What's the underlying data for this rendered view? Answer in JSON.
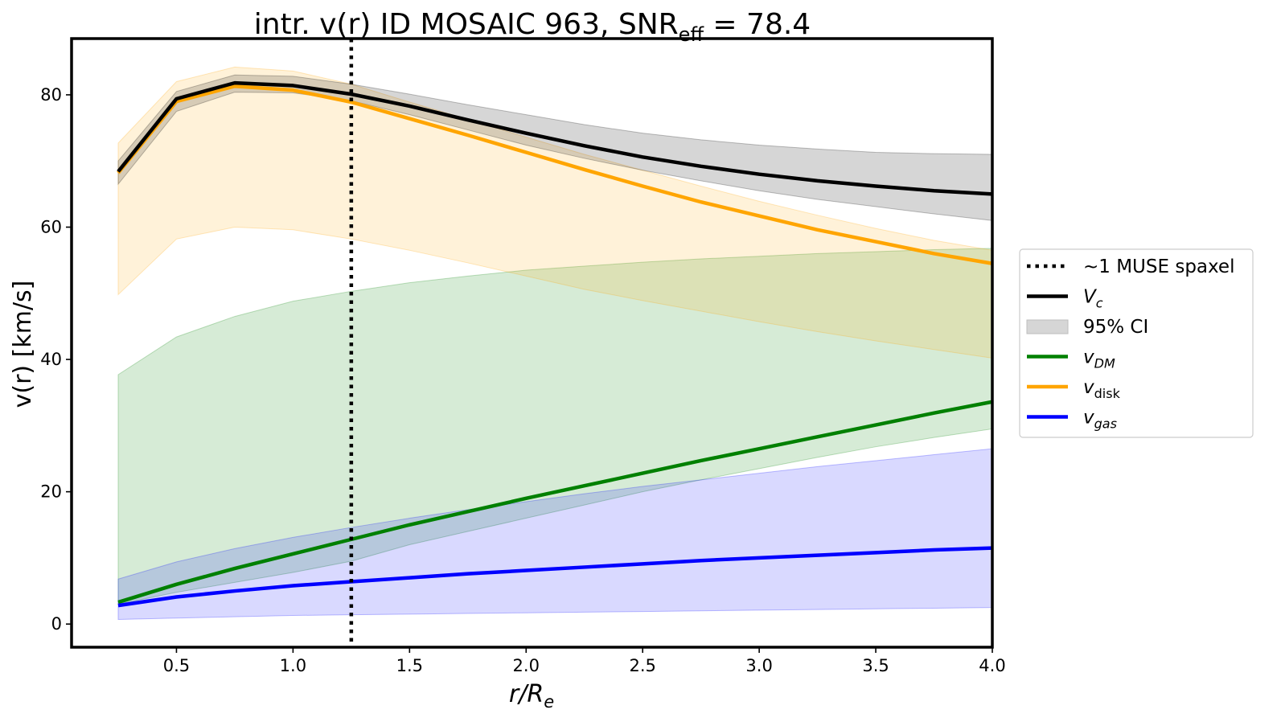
{
  "chart_data": {
    "type": "line",
    "title": "intr. v(r) ID MOSAIC 963, SNR",
    "title_subscript": "eff",
    "title_suffix": " = 78.4",
    "xlabel": {
      "base": "r/R",
      "sub": "e"
    },
    "ylabel": "v(r) [km/s]",
    "xlim": [
      0.05,
      4.0
    ],
    "ylim": [
      -3.5,
      88.5
    ],
    "xticks": [
      0.5,
      1.0,
      1.5,
      2.0,
      2.5,
      3.0,
      3.5,
      4.0
    ],
    "xtick_labels": [
      "0.5",
      "1.0",
      "1.5",
      "2.0",
      "2.5",
      "3.0",
      "3.5",
      "4.0"
    ],
    "yticks": [
      0,
      20,
      40,
      60,
      80
    ],
    "ytick_labels": [
      "0",
      "20",
      "40",
      "60",
      "80"
    ],
    "grid": false,
    "legend_position": "outside-right",
    "vline": {
      "x": 1.25,
      "label": "~1 MUSE spaxel",
      "color": "#000000"
    },
    "x": [
      0.25,
      0.5,
      0.75,
      1.0,
      1.25,
      1.5,
      1.75,
      2.0,
      2.25,
      2.5,
      2.75,
      3.0,
      3.25,
      3.5,
      3.75,
      4.0
    ],
    "series": [
      {
        "key": "dm",
        "name": "v",
        "sub": "DM",
        "sub_italic": true,
        "color": "#008000",
        "band_opacity": 0.16,
        "values": [
          3.3,
          6.0,
          8.4,
          10.6,
          12.8,
          15.0,
          17.0,
          19.0,
          20.9,
          22.8,
          24.7,
          26.5,
          28.3,
          30.1,
          31.9,
          33.6
        ],
        "lower": [
          3.0,
          4.8,
          6.3,
          7.8,
          9.5,
          12.0,
          14.0,
          16.0,
          18.0,
          20.0,
          21.8,
          23.5,
          25.2,
          26.8,
          28.2,
          29.5
        ],
        "upper": [
          37.7,
          43.4,
          46.5,
          48.8,
          50.3,
          51.6,
          52.6,
          53.5,
          54.1,
          54.7,
          55.2,
          55.6,
          56.0,
          56.3,
          56.6,
          56.8
        ]
      },
      {
        "key": "gas",
        "name": "v",
        "sub": "gas",
        "sub_italic": true,
        "color": "#0000ff",
        "band_opacity": 0.15,
        "values": [
          2.8,
          4.1,
          5.0,
          5.8,
          6.4,
          7.0,
          7.6,
          8.1,
          8.6,
          9.1,
          9.6,
          10.0,
          10.4,
          10.8,
          11.2,
          11.5
        ],
        "lower": [
          0.7,
          0.9,
          1.1,
          1.3,
          1.4,
          1.5,
          1.6,
          1.7,
          1.8,
          1.9,
          2.0,
          2.1,
          2.2,
          2.3,
          2.4,
          2.5
        ],
        "upper": [
          6.8,
          9.4,
          11.4,
          13.1,
          14.6,
          16.0,
          17.3,
          18.5,
          19.7,
          20.8,
          21.8,
          22.8,
          23.8,
          24.7,
          25.6,
          26.5
        ]
      },
      {
        "key": "disk",
        "name": "v",
        "sub": "disk",
        "sub_italic": false,
        "color": "#ffa500",
        "band_opacity": 0.15,
        "values": [
          68.2,
          79.0,
          81.3,
          80.7,
          78.9,
          76.4,
          73.9,
          71.3,
          68.7,
          66.2,
          63.8,
          61.7,
          59.6,
          57.8,
          56.0,
          54.5
        ],
        "lower": [
          49.8,
          58.2,
          60.0,
          59.6,
          58.2,
          56.5,
          54.6,
          52.6,
          50.6,
          48.9,
          47.3,
          45.7,
          44.2,
          42.8,
          41.5,
          40.2
        ],
        "upper": [
          72.7,
          82.0,
          84.2,
          83.6,
          81.6,
          78.9,
          76.3,
          73.6,
          71.0,
          68.6,
          66.2,
          63.9,
          61.8,
          59.8,
          58.0,
          56.5
        ]
      },
      {
        "key": "vc",
        "name": "V",
        "sub": "c",
        "sub_italic": true,
        "color": "#000000",
        "band_opacity": 0.16,
        "values": [
          68.4,
          79.4,
          81.8,
          81.4,
          80.1,
          78.3,
          76.2,
          74.2,
          72.3,
          70.6,
          69.2,
          68.0,
          67.0,
          66.2,
          65.5,
          65.0
        ],
        "lower": [
          66.5,
          77.5,
          80.4,
          80.3,
          79.1,
          77.0,
          74.7,
          72.4,
          70.4,
          68.6,
          67.0,
          65.5,
          64.2,
          63.1,
          62.0,
          61.0
        ],
        "upper": [
          70.0,
          80.5,
          83.0,
          82.8,
          81.6,
          80.1,
          78.5,
          77.0,
          75.5,
          74.2,
          73.2,
          72.4,
          71.8,
          71.3,
          71.1,
          71.0
        ]
      }
    ],
    "legend": [
      {
        "kind": "dotted",
        "color": "#000000",
        "text": "~1 MUSE spaxel"
      },
      {
        "kind": "line",
        "color": "#000000",
        "text": "V",
        "sub": "c",
        "sub_italic": true
      },
      {
        "kind": "patch",
        "color": "#d6d6d6",
        "text": "95% CI"
      },
      {
        "kind": "line",
        "color": "#008000",
        "text": "v",
        "sub": "DM",
        "sub_italic": true
      },
      {
        "kind": "line",
        "color": "#ffa500",
        "text": "v",
        "sub": "disk",
        "sub_italic": false
      },
      {
        "kind": "line",
        "color": "#0000ff",
        "text": "v",
        "sub": "gas",
        "sub_italic": true
      }
    ]
  }
}
